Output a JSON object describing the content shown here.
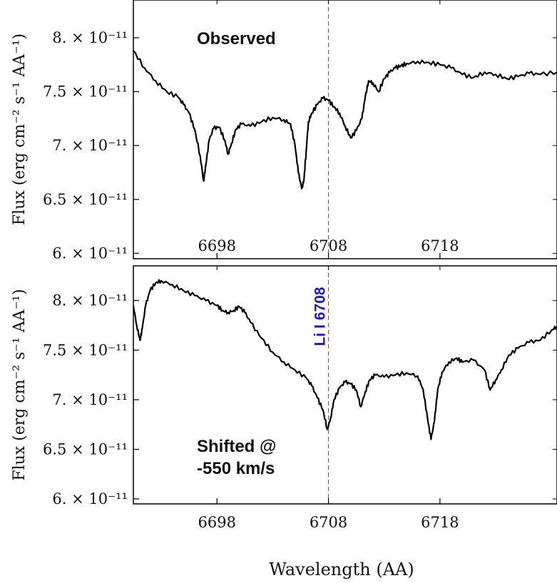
{
  "chart_data": [
    {
      "type": "line",
      "panel": "top",
      "annotation": "Observed",
      "ylabel": "Flux (erg cm⁻² s⁻¹ AA⁻¹)",
      "xlim": [
        6690.5,
        6728.5
      ],
      "ylim": [
        5.95e-11,
        8.35e-11
      ],
      "x_ticks": [
        6698,
        6708,
        6718
      ],
      "x_tick_labels": [
        "6698",
        "6708",
        "6718"
      ],
      "y_ticks": [
        6e-11,
        6.5e-11,
        7e-11,
        7.5e-11,
        8e-11
      ],
      "y_tick_labels": [
        "6. × 10⁻¹¹",
        "6.5 × 10⁻¹¹",
        "7. × 10⁻¹¹",
        "7.5 × 10⁻¹¹",
        "8. × 10⁻¹¹"
      ],
      "marker": {
        "x": 6708.0,
        "label": ""
      },
      "series": [
        {
          "color": "#000000",
          "x": [
            6690.5,
            6691.5,
            6692.5,
            6693.5,
            6694.5,
            6695.0,
            6695.5,
            6696.0,
            6696.5,
            6696.8,
            6697.0,
            6697.3,
            6697.7,
            6698.2,
            6698.7,
            6699.0,
            6699.3,
            6699.7,
            6700.2,
            6701.0,
            6702.0,
            6703.0,
            6704.0,
            6704.6,
            6705.0,
            6705.3,
            6705.6,
            6705.8,
            6706.0,
            6706.2,
            6706.5,
            6707.0,
            6707.5,
            6708.0,
            6708.5,
            6709.0,
            6709.5,
            6710.0,
            6710.5,
            6711.0,
            6711.3,
            6711.6,
            6712.0,
            6712.5,
            6713.0,
            6713.5,
            6714.0,
            6714.5,
            6715.0,
            6716.0,
            6717.0,
            6718.0,
            6719.0,
            6720.0,
            6721.0,
            6722.0,
            6723.0,
            6724.0,
            6725.0,
            6726.0,
            6727.0,
            6728.5
          ],
          "y": [
            7.88e-11,
            7.72e-11,
            7.6e-11,
            7.5e-11,
            7.45e-11,
            7.38e-11,
            7.3e-11,
            7.15e-11,
            6.9e-11,
            6.67e-11,
            6.82e-11,
            7.05e-11,
            7.16e-11,
            7.17e-11,
            7.05e-11,
            6.92e-11,
            7.02e-11,
            7.15e-11,
            7.2e-11,
            7.18e-11,
            7.22e-11,
            7.26e-11,
            7.24e-11,
            7.2e-11,
            7e-11,
            6.75e-11,
            6.6e-11,
            6.68e-11,
            6.95e-11,
            7.22e-11,
            7.3e-11,
            7.38e-11,
            7.44e-11,
            7.42e-11,
            7.36e-11,
            7.3e-11,
            7.18e-11,
            7.07e-11,
            7.14e-11,
            7.25e-11,
            7.45e-11,
            7.6e-11,
            7.58e-11,
            7.5e-11,
            7.62e-11,
            7.68e-11,
            7.72e-11,
            7.74e-11,
            7.76e-11,
            7.78e-11,
            7.77e-11,
            7.75e-11,
            7.72e-11,
            7.66e-11,
            7.63e-11,
            7.68e-11,
            7.66e-11,
            7.62e-11,
            7.64e-11,
            7.67e-11,
            7.66e-11,
            7.68e-11
          ]
        }
      ]
    },
    {
      "type": "line",
      "panel": "bottom",
      "annotation_lines": [
        "Shifted @",
        "-550 km/s"
      ],
      "xlabel": "Wavelength (AA)",
      "ylabel": "Flux (erg cm⁻² s⁻¹ AA⁻¹)",
      "xlim": [
        6690.5,
        6728.5
      ],
      "ylim": [
        5.95e-11,
        8.35e-11
      ],
      "x_ticks": [
        6698,
        6708,
        6718
      ],
      "x_tick_labels": [
        "6698",
        "6708",
        "6718"
      ],
      "y_ticks": [
        6e-11,
        6.5e-11,
        7e-11,
        7.5e-11,
        8e-11
      ],
      "y_tick_labels": [
        "6. × 10⁻¹¹",
        "6.5 × 10⁻¹¹",
        "7. × 10⁻¹¹",
        "7.5 × 10⁻¹¹",
        "8. × 10⁻¹¹"
      ],
      "marker": {
        "x": 6708.0,
        "label": "Li I 6708",
        "color": "#1414e6"
      },
      "series": [
        {
          "color": "#000000",
          "x": [
            6690.5,
            6690.8,
            6691.1,
            6691.3,
            6691.6,
            6692.0,
            6692.5,
            6693.0,
            6694.0,
            6695.0,
            6696.0,
            6697.0,
            6698.0,
            6698.5,
            6699.0,
            6699.5,
            6700.0,
            6700.5,
            6701.0,
            6702.0,
            6703.0,
            6704.0,
            6705.0,
            6706.0,
            6706.5,
            6707.0,
            6707.5,
            6707.9,
            6708.2,
            6708.5,
            6709.0,
            6709.5,
            6710.0,
            6710.5,
            6710.9,
            6711.3,
            6711.7,
            6712.2,
            6713.0,
            6714.0,
            6715.0,
            6716.0,
            6716.5,
            6716.9,
            6717.2,
            6717.5,
            6717.8,
            6718.2,
            6718.8,
            6719.5,
            6720.0,
            6721.0,
            6722.0,
            6722.5,
            6723.0,
            6723.5,
            6724.2,
            6725.0,
            6726.0,
            6727.0,
            6728.0,
            6728.5
          ],
          "y": [
            7.95e-11,
            7.75e-11,
            7.6e-11,
            7.72e-11,
            7.95e-11,
            8.1e-11,
            8.18e-11,
            8.2e-11,
            8.16e-11,
            8.1e-11,
            8.05e-11,
            8e-11,
            7.95e-11,
            7.9e-11,
            7.88e-11,
            7.9e-11,
            7.94e-11,
            7.88e-11,
            7.78e-11,
            7.62e-11,
            7.48e-11,
            7.38e-11,
            7.3e-11,
            7.22e-11,
            7.14e-11,
            7.02e-11,
            6.9e-11,
            6.7e-11,
            6.82e-11,
            7e-11,
            7.12e-11,
            7.18e-11,
            7.16e-11,
            7.1e-11,
            6.93e-11,
            7.08e-11,
            7.2e-11,
            7.25e-11,
            7.23e-11,
            7.25e-11,
            7.27e-11,
            7.24e-11,
            7.1e-11,
            6.8e-11,
            6.6e-11,
            6.78e-11,
            7.1e-11,
            7.28e-11,
            7.38e-11,
            7.42e-11,
            7.38e-11,
            7.4e-11,
            7.3e-11,
            7.1e-11,
            7.2e-11,
            7.3e-11,
            7.45e-11,
            7.52e-11,
            7.58e-11,
            7.6e-11,
            7.7e-11,
            7.74e-11
          ]
        }
      ]
    }
  ]
}
